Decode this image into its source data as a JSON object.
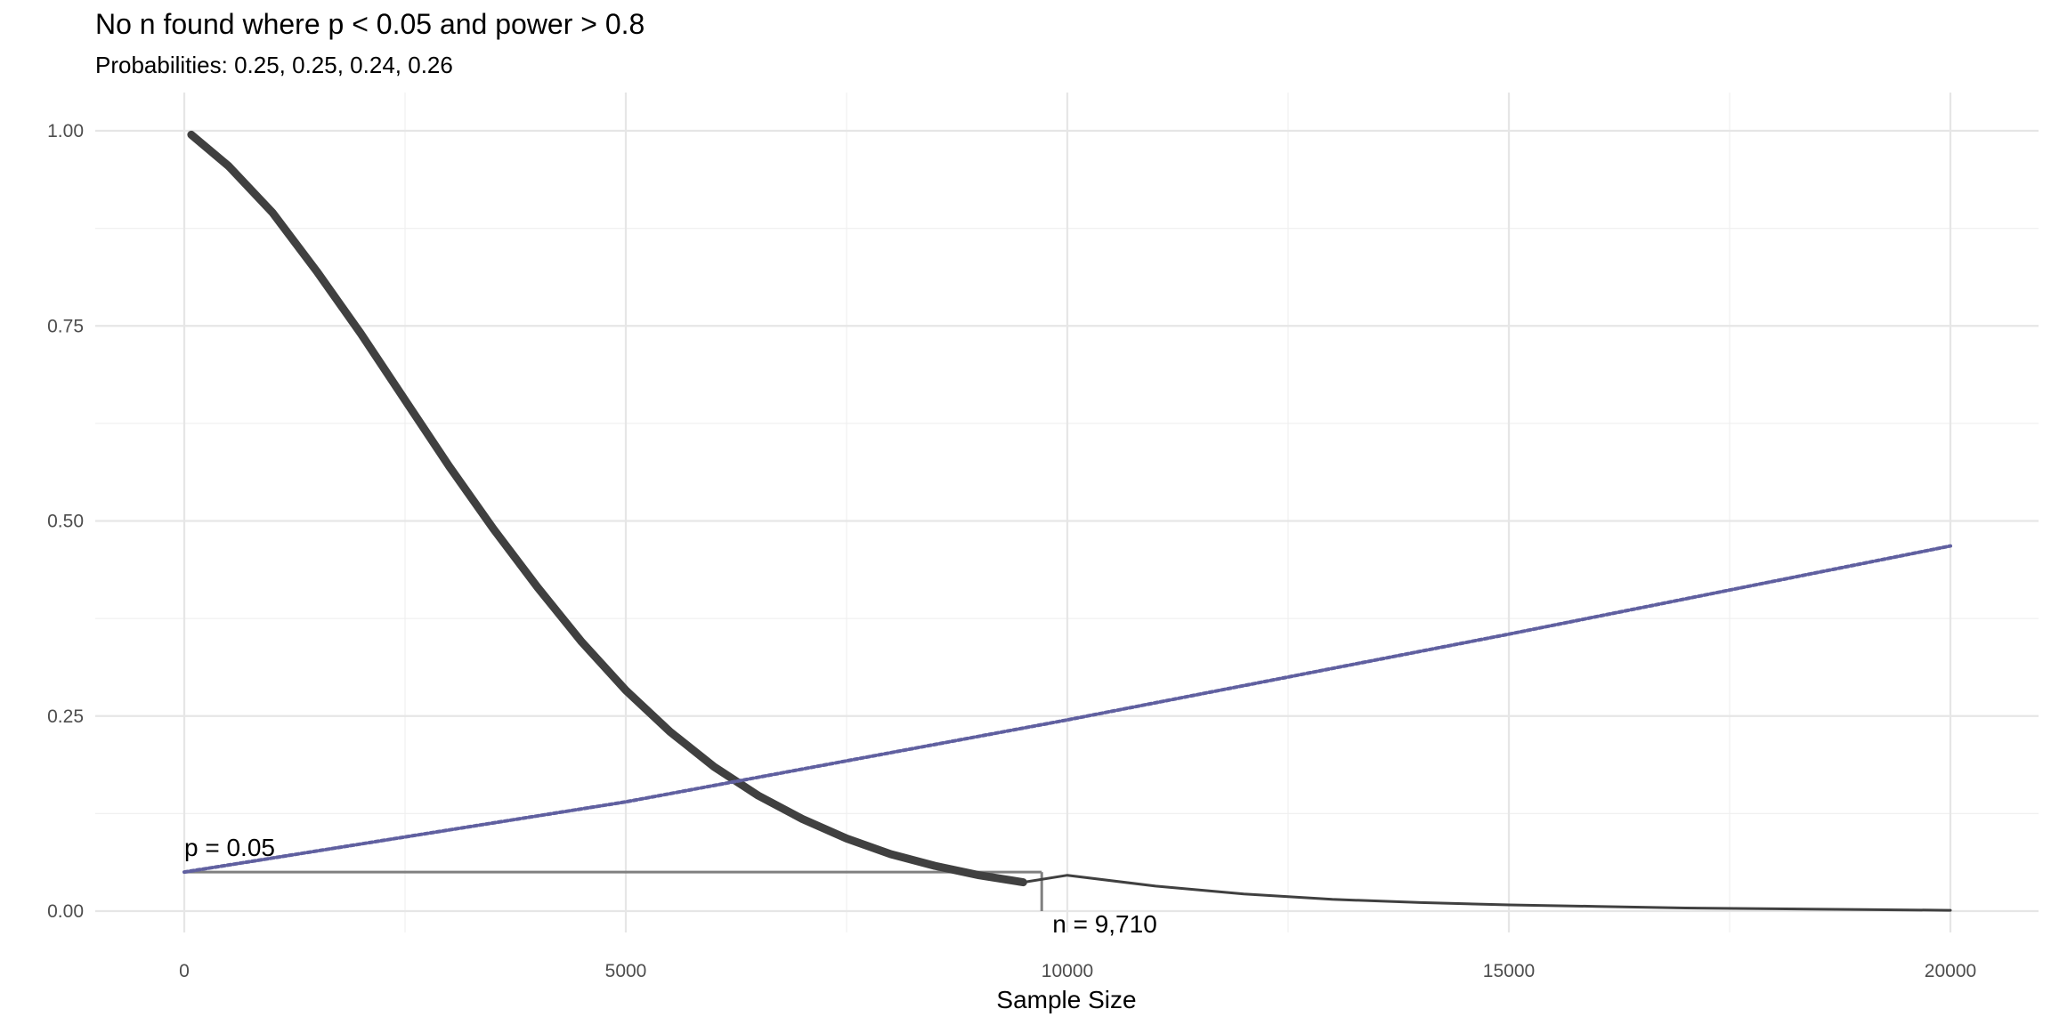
{
  "chart_data": {
    "type": "line",
    "title": "No n found where p < 0.05 and power > 0.8",
    "subtitle": "Probabilities: 0.25, 0.25, 0.24, 0.26",
    "xlabel": "Sample Size",
    "ylabel": "",
    "xlim": [
      0,
      20000
    ],
    "ylim": [
      0,
      1
    ],
    "x_ticks": [
      0,
      5000,
      10000,
      15000,
      20000
    ],
    "x_tick_labels": [
      "0",
      "5000",
      "10000",
      "15000",
      "20000"
    ],
    "y_ticks": [
      0,
      0.25,
      0.5,
      0.75,
      1
    ],
    "y_tick_labels": [
      "0.00",
      "0.25",
      "0.50",
      "0.75",
      "1.00"
    ],
    "grid": true,
    "legend": "none",
    "series": [
      {
        "style": "solid",
        "color": "#404040",
        "x": [
          80,
          500,
          1000,
          1500,
          2000,
          2500,
          3000,
          3500,
          4000,
          4500,
          5000,
          5500,
          6000,
          6500,
          7000,
          7500,
          8000,
          8500,
          9000,
          9500,
          10000,
          11000,
          12000,
          13000,
          14000,
          15000,
          16000,
          17000,
          18000,
          19000,
          20000
        ],
        "y": [
          0.995,
          0.955,
          0.895,
          0.82,
          0.74,
          0.655,
          0.57,
          0.49,
          0.415,
          0.345,
          0.283,
          0.23,
          0.185,
          0.148,
          0.118,
          0.093,
          0.073,
          0.058,
          0.046,
          0.037,
          0.046,
          0.032,
          0.022,
          0.015,
          0.011,
          0.008,
          0.006,
          0.004,
          0.003,
          0.002,
          0.001
        ]
      },
      {
        "style": "dotted",
        "color": "#6060a0",
        "x": [
          0,
          5000,
          10000,
          15000,
          20000
        ],
        "y": [
          0.05,
          0.14,
          0.245,
          0.355,
          0.468
        ]
      }
    ],
    "annotations": [
      {
        "text": "p = 0.05",
        "x": 0,
        "y": 0.05
      },
      {
        "text": "n = 9,710",
        "x": 9710,
        "y": 0
      }
    ],
    "reference_lines": [
      {
        "orientation": "horizontal",
        "y": 0.05,
        "x_from": 0,
        "x_to": 9710,
        "color": "#808080"
      },
      {
        "orientation": "vertical",
        "x": 9710,
        "y_from": 0,
        "y_to": 0.05,
        "color": "#808080"
      }
    ]
  }
}
